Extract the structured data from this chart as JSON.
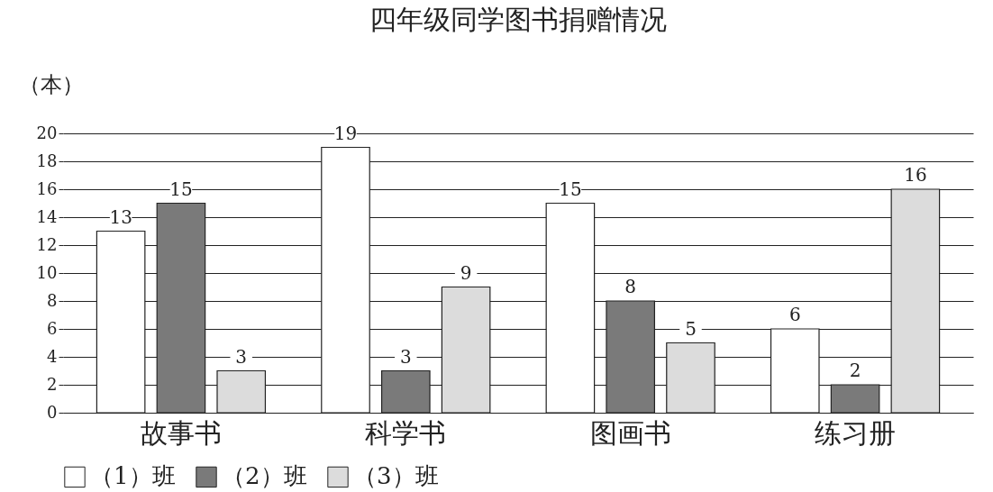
{
  "chart_data": {
    "type": "bar",
    "title": "四年级同学图书捐赠情况",
    "ylabel": "（本）",
    "categories": [
      "故事书",
      "科学书",
      "图画书",
      "练习册"
    ],
    "series": [
      {
        "name": "（1）班",
        "color": "#ffffff",
        "values": [
          13,
          19,
          15,
          6
        ]
      },
      {
        "name": "（2）班",
        "color": "#7a7a7a",
        "values": [
          15,
          3,
          8,
          2
        ]
      },
      {
        "name": "（3）班",
        "color": "#dcdcdc",
        "values": [
          3,
          9,
          5,
          16
        ]
      }
    ],
    "ylim": [
      0,
      20
    ],
    "yticks": [
      0,
      2,
      4,
      6,
      8,
      10,
      12,
      14,
      16,
      18,
      20
    ],
    "grid": "y",
    "legend": "bottom",
    "data_labels": true
  }
}
